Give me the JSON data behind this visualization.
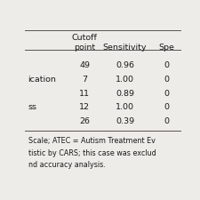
{
  "header_line1": "Cutoff",
  "header_line2": "point",
  "header_col3": "Sensitivity",
  "header_col4": "Spe",
  "rows": [
    {
      "label": "",
      "cutoff": "49",
      "sensitivity": "0.96",
      "spe": "0"
    },
    {
      "label": "ication",
      "cutoff": "7",
      "sensitivity": "1.00",
      "spe": "0"
    },
    {
      "label": "",
      "cutoff": "11",
      "sensitivity": "0.89",
      "spe": "0"
    },
    {
      "label": "ss",
      "cutoff": "12",
      "sensitivity": "1.00",
      "spe": "0"
    },
    {
      "label": "",
      "cutoff": "26",
      "sensitivity": "0.39",
      "spe": "0"
    }
  ],
  "footnotes": [
    "Scale; ATEC = Autism Treatment Ev",
    "tistic by CARS; this case was exclud",
    "nd accuracy analysis."
  ],
  "bg_color": "#eeece8",
  "text_color": "#1a1a1a",
  "line_color": "#555555",
  "font_size": 6.8,
  "footnote_font_size": 5.8
}
